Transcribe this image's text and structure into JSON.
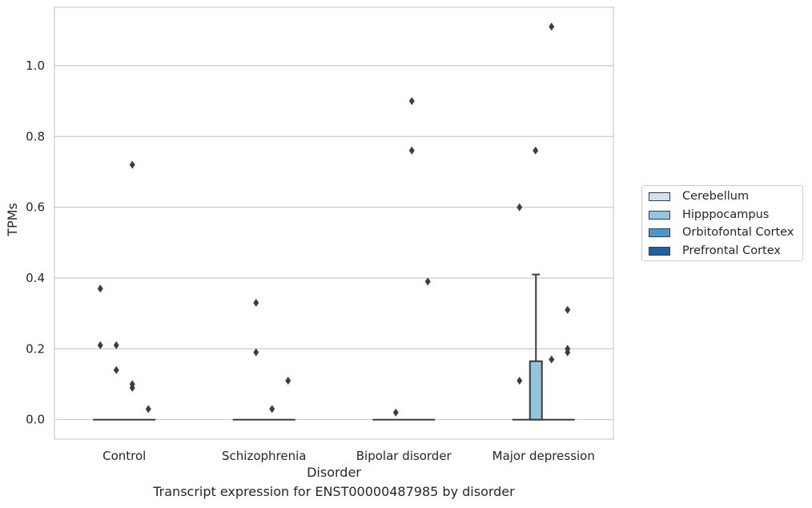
{
  "chart_data": {
    "type": "box",
    "caption": "Transcript expression for ENST00000487985 by disorder",
    "xlabel": "Disorder",
    "ylabel": "TPMs",
    "ylim": [
      -0.055,
      1.165
    ],
    "yticks": [
      0.0,
      0.2,
      0.4,
      0.6,
      0.8,
      1.0
    ],
    "ytick_labels": [
      "0.0",
      "0.2",
      "0.4",
      "0.6",
      "0.8",
      "1.0"
    ],
    "categories": [
      "Control",
      "Schizophrenia",
      "Bipolar disorder",
      "Major depression"
    ],
    "grid": true,
    "legend_position": "right",
    "series": [
      {
        "name": "Cerebellum",
        "color": "#d0e1f2"
      },
      {
        "name": "Hipppocampus",
        "color": "#94c4df"
      },
      {
        "name": "Orbitofontal Cortex",
        "color": "#4a98c9"
      },
      {
        "name": "Prefrontal Cortex",
        "color": "#1764ab"
      }
    ],
    "boxes": [
      {
        "category": "Control",
        "series": "Hipppocampus",
        "q1": 0.0,
        "median": 0.0,
        "q3": 0.0,
        "whisker_low": 0.0,
        "whisker_high": 0.0,
        "outliers": [
          {
            "x_offset": -0.75,
            "value": 0.37
          },
          {
            "x_offset": -0.75,
            "value": 0.21
          },
          {
            "x_offset": -0.25,
            "value": 0.21
          },
          {
            "x_offset": -0.25,
            "value": 0.14
          },
          {
            "x_offset": 0.25,
            "value": 0.72
          },
          {
            "x_offset": 0.25,
            "value": 0.1
          },
          {
            "x_offset": 0.25,
            "value": 0.09
          },
          {
            "x_offset": 0.75,
            "value": 0.03
          }
        ]
      },
      {
        "category": "Schizophrenia",
        "series": "Hipppocampus",
        "q1": 0.0,
        "median": 0.0,
        "q3": 0.0,
        "whisker_low": 0.0,
        "whisker_high": 0.0,
        "outliers": [
          {
            "x_offset": -0.25,
            "value": 0.33
          },
          {
            "x_offset": -0.25,
            "value": 0.19
          },
          {
            "x_offset": 0.25,
            "value": 0.03
          },
          {
            "x_offset": 0.75,
            "value": 0.11
          }
        ]
      },
      {
        "category": "Bipolar disorder",
        "series": "Hipppocampus",
        "q1": 0.0,
        "median": 0.0,
        "q3": 0.0,
        "whisker_low": 0.0,
        "whisker_high": 0.0,
        "outliers": [
          {
            "x_offset": -0.25,
            "value": 0.02
          },
          {
            "x_offset": 0.25,
            "value": 0.9
          },
          {
            "x_offset": 0.25,
            "value": 0.76
          },
          {
            "x_offset": 0.75,
            "value": 0.39
          }
        ]
      },
      {
        "category": "Major depression",
        "series": "Hipppocampus",
        "q1": 0.0,
        "median": 0.0,
        "q3": 0.165,
        "whisker_low": 0.0,
        "whisker_high": 0.41,
        "outliers": [
          {
            "x_offset": -0.75,
            "value": 0.6
          },
          {
            "x_offset": -0.75,
            "value": 0.11
          },
          {
            "x_offset": -0.25,
            "value": 0.76
          },
          {
            "x_offset": 0.25,
            "value": 1.11
          },
          {
            "x_offset": 0.25,
            "value": 0.17
          },
          {
            "x_offset": 0.75,
            "value": 0.31
          },
          {
            "x_offset": 0.75,
            "value": 0.2
          },
          {
            "x_offset": 0.75,
            "value": 0.19
          }
        ]
      }
    ]
  }
}
